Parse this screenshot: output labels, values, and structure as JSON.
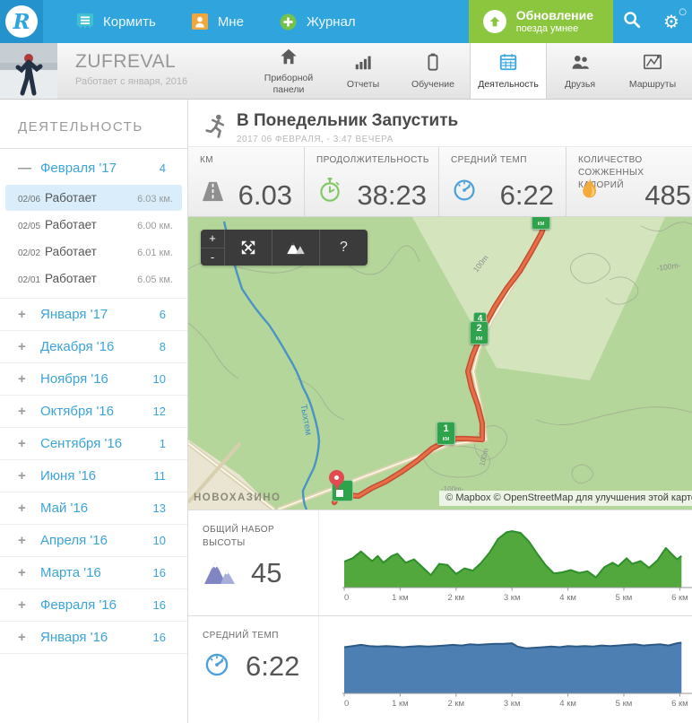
{
  "navbar": {
    "brand": "R",
    "items": [
      {
        "label": "Кормить"
      },
      {
        "label": "Мне"
      },
      {
        "label": "Журнал"
      }
    ],
    "upgrade": {
      "line1": "Обновление",
      "line2": "поезда умнее"
    }
  },
  "profile": {
    "name": "ZUFREVAL",
    "since": "Работает с января, 2016"
  },
  "tabs": [
    {
      "label": "Приборной панели"
    },
    {
      "label": "Отчеты"
    },
    {
      "label": "Обучение"
    },
    {
      "label": "Деятельность"
    },
    {
      "label": "Друзья"
    },
    {
      "label": "Маршруты"
    }
  ],
  "sidebar": {
    "title": "ДЕЯТЕЛЬНОСТЬ",
    "expanded_month": {
      "toggle": "—",
      "label": "Февраля '17",
      "count": "4"
    },
    "activities": [
      {
        "date": "02/06",
        "type": "Работает",
        "distance": "6.03 км."
      },
      {
        "date": "02/05",
        "type": "Работает",
        "distance": "6.00 км."
      },
      {
        "date": "02/02",
        "type": "Работает",
        "distance": "6.01 км."
      },
      {
        "date": "02/01",
        "type": "Работает",
        "distance": "6.05 км."
      }
    ],
    "months": [
      {
        "toggle": "+",
        "label": "Января '17",
        "count": "6"
      },
      {
        "toggle": "+",
        "label": "Декабря '16",
        "count": "8"
      },
      {
        "toggle": "+",
        "label": "Ноября '16",
        "count": "10"
      },
      {
        "toggle": "+",
        "label": "Октября '16",
        "count": "12"
      },
      {
        "toggle": "+",
        "label": "Сентября '16",
        "count": "1"
      },
      {
        "toggle": "+",
        "label": "Июня '16",
        "count": "11"
      },
      {
        "toggle": "+",
        "label": "Май '16",
        "count": "13"
      },
      {
        "toggle": "+",
        "label": "Апреля '16",
        "count": "10"
      },
      {
        "toggle": "+",
        "label": "Марта '16",
        "count": "16"
      },
      {
        "toggle": "+",
        "label": "Февраля '16",
        "count": "16"
      },
      {
        "toggle": "+",
        "label": "Января '16",
        "count": "16"
      }
    ]
  },
  "activity": {
    "title": "В Понедельник Запустить",
    "date": "2017 06 ФЕВРАЛЯ, - 3:47 ВЕЧЕРА",
    "stats": [
      {
        "label": "КМ",
        "value": "6.03"
      },
      {
        "label": "ПРОДОЛЖИТЕЛЬНОСТЬ",
        "value": "38:23"
      },
      {
        "label": "СРЕДНИЙ ТЕМП",
        "value": "6:22"
      },
      {
        "label": "КОЛИЧЕСТВО СОЖЖЕННЫХ КАЛОРИЙ",
        "value": "485"
      }
    ]
  },
  "map": {
    "controls": {
      "zoom_in": "+",
      "zoom_out": "-",
      "help": "?"
    },
    "labels": {
      "river": "Тыхтем",
      "town": "НОВОХАЗИНО",
      "contour": "100m",
      "contour_dashed": "-100m-"
    },
    "markers": {
      "km1": "1",
      "km2": "2",
      "km4": "4",
      "unit": "км"
    },
    "attribution": "© Mapbox © OpenStreetMap для улучшения этой карте"
  },
  "chart_data": [
    {
      "type": "area",
      "title": "ОБЩИЙ НАБОР ВЫСОТЫ",
      "value": "45",
      "fill": "#52a83c",
      "stroke": "#2e8f2c",
      "xlim": [
        0,
        6.09
      ],
      "ylim": [
        0,
        105
      ],
      "x": [
        0,
        0.15,
        0.3,
        0.4,
        0.5,
        0.6,
        0.7,
        0.85,
        0.95,
        1.1,
        1.25,
        1.4,
        1.55,
        1.7,
        1.85,
        2.0,
        2.15,
        2.3,
        2.45,
        2.6,
        2.75,
        2.9,
        3.0,
        3.15,
        3.3,
        3.45,
        3.6,
        3.75,
        3.9,
        4.05,
        4.2,
        4.35,
        4.5,
        4.65,
        4.8,
        4.9,
        5.05,
        5.15,
        5.3,
        5.45,
        5.6,
        5.75,
        5.85,
        5.95,
        6.03
      ],
      "y": [
        46,
        52,
        64,
        55,
        47,
        56,
        44,
        56,
        60,
        44,
        50,
        36,
        22,
        42,
        40,
        24,
        34,
        30,
        44,
        62,
        86,
        98,
        100,
        97,
        82,
        60,
        40,
        25,
        27,
        31,
        26,
        29,
        18,
        36,
        44,
        38,
        52,
        42,
        47,
        35,
        48,
        70,
        60,
        50,
        56
      ],
      "ticks": {
        "x": [
          0,
          1,
          2,
          3,
          4,
          5,
          6
        ],
        "labels": [
          "0",
          "1 км",
          "2 км",
          "3 км",
          "4 км",
          "5 км",
          "6 км"
        ]
      }
    },
    {
      "type": "area",
      "title": "СРЕДНИЙ ТЕМП",
      "value": "6:22",
      "fill": "#4d7fb2",
      "stroke": "#2b5a87",
      "xlim": [
        0,
        6.09
      ],
      "ylim": [
        0,
        105
      ],
      "x": [
        0,
        0.15,
        0.3,
        0.45,
        0.6,
        0.75,
        0.9,
        1.05,
        1.2,
        1.35,
        1.5,
        1.65,
        1.8,
        1.95,
        2.1,
        2.25,
        2.4,
        2.55,
        2.7,
        2.85,
        3.0,
        3.1,
        3.25,
        3.4,
        3.55,
        3.7,
        3.85,
        4.0,
        4.15,
        4.3,
        4.45,
        4.6,
        4.75,
        4.9,
        5.05,
        5.2,
        5.35,
        5.5,
        5.65,
        5.8,
        5.95,
        6.03
      ],
      "y": [
        82,
        84,
        86,
        84,
        83,
        84,
        83,
        82,
        83,
        84,
        83,
        84,
        85,
        86,
        85,
        87,
        86,
        87,
        88,
        88,
        89,
        83,
        80,
        81,
        82,
        83,
        82,
        84,
        83,
        84,
        83,
        85,
        84,
        85,
        86,
        87,
        85,
        86,
        87,
        85,
        89,
        90
      ],
      "ticks": {
        "x": [
          0,
          1,
          2,
          3,
          4,
          5,
          6
        ],
        "labels": [
          "0",
          "1 км",
          "2 км",
          "3 км",
          "4 км",
          "5 км",
          "6 км"
        ]
      }
    }
  ]
}
